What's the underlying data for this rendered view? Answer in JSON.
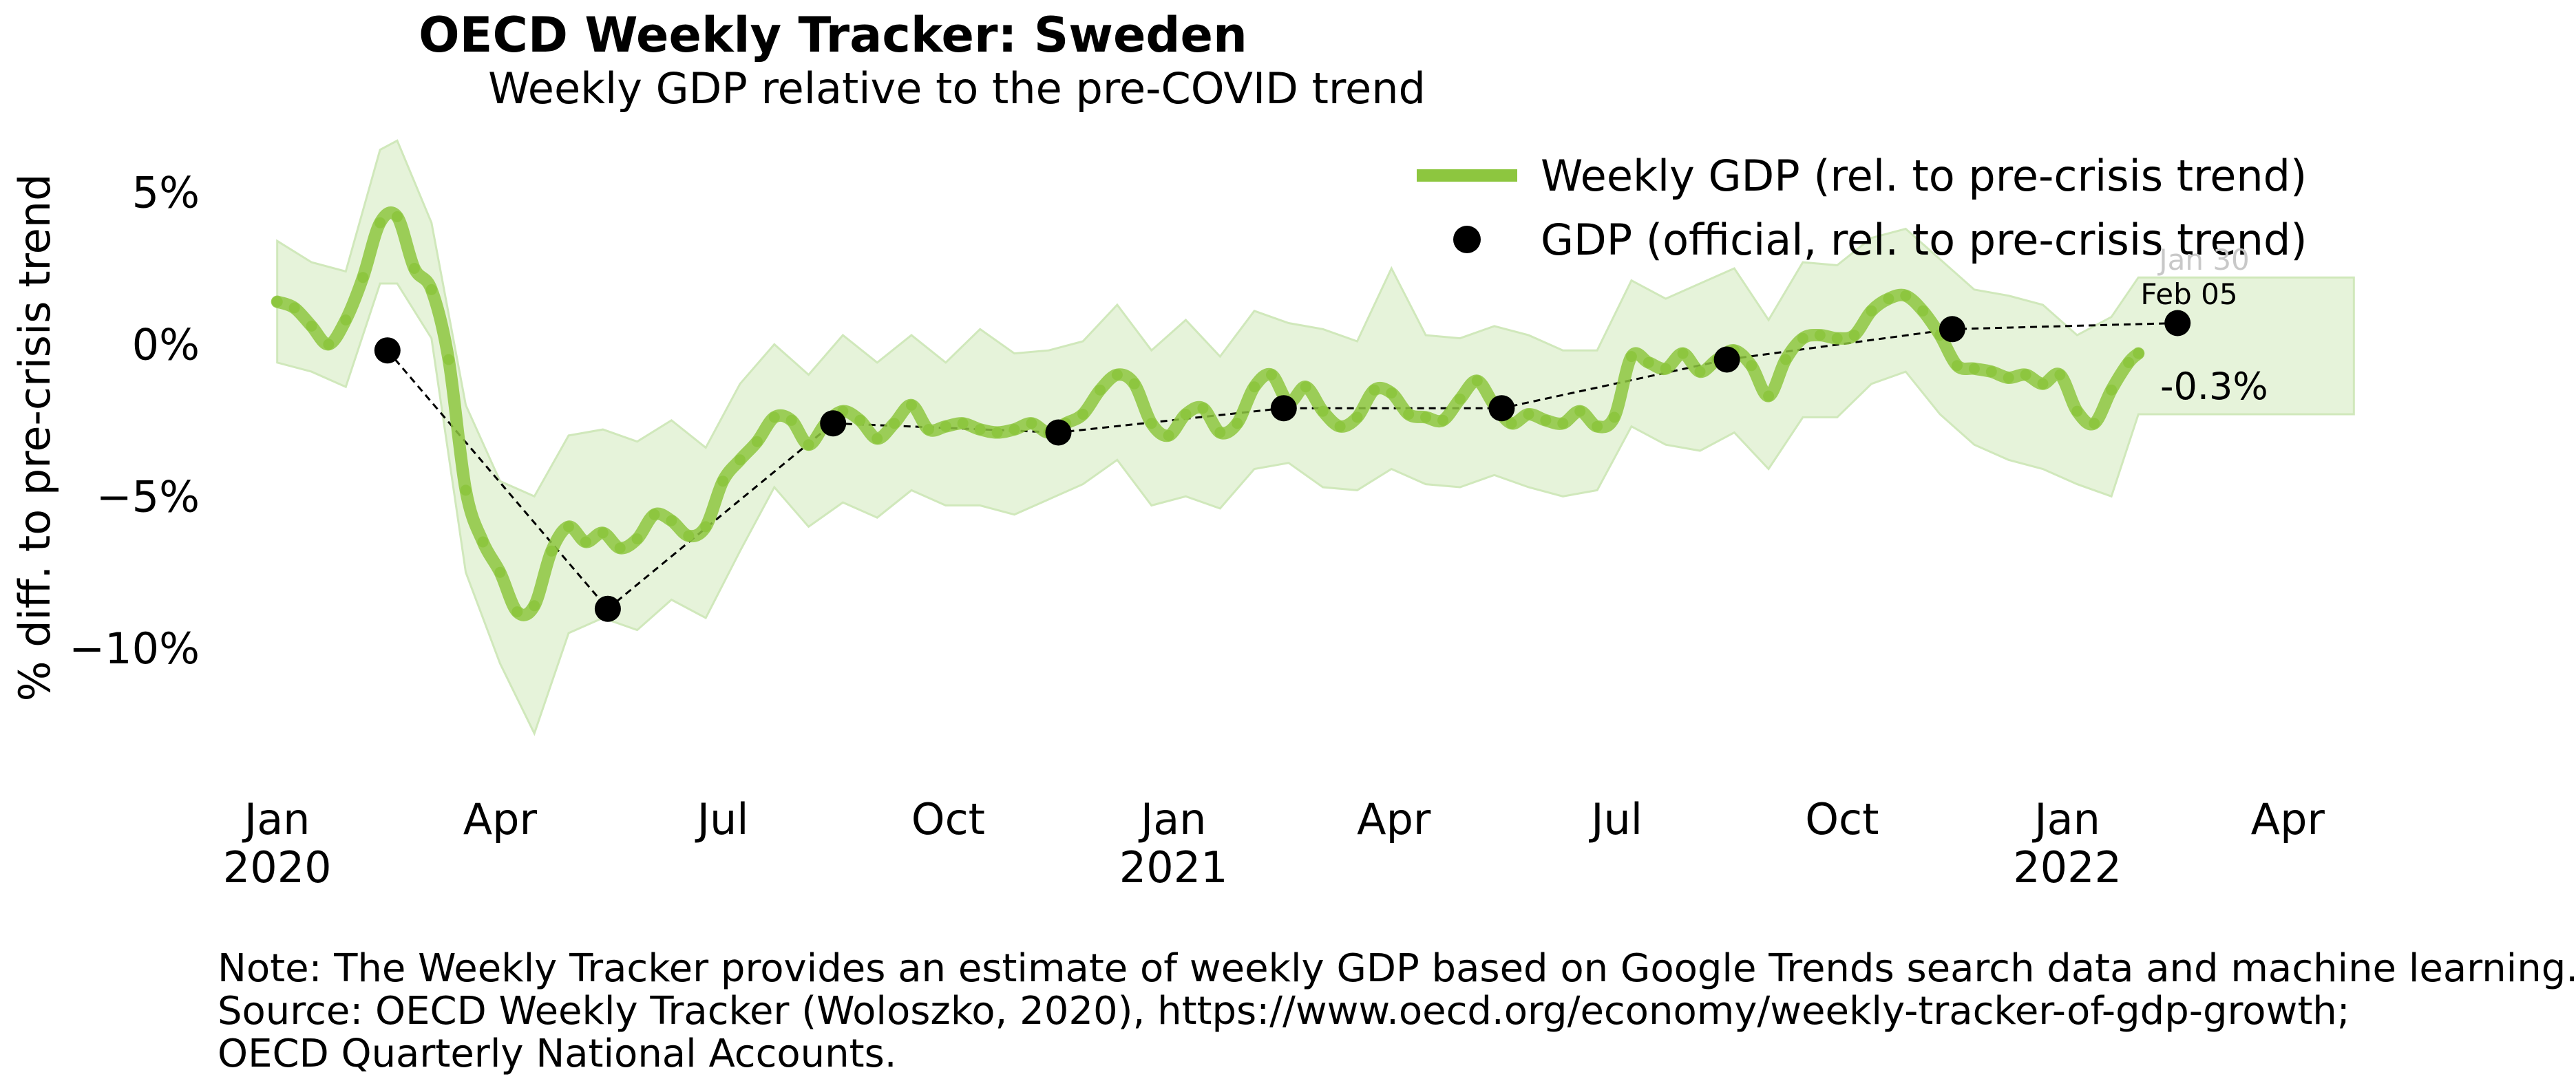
{
  "chart_data": {
    "type": "line",
    "title": "OECD Weekly Tracker: Sweden",
    "subtitle": "Weekly GDP relative to the pre-COVID trend",
    "ylabel": "% diff. to pre-crisis trend",
    "xlabel": "",
    "ylim": [
      -13.8,
      6.8
    ],
    "xlim": [
      "2019-12-20",
      "2022-05-01"
    ],
    "y_ticks": [
      {
        "value": 5,
        "label": "5%"
      },
      {
        "value": 0,
        "label": "0%"
      },
      {
        "value": -5,
        "label": "−5%"
      },
      {
        "value": -10,
        "label": "−10%"
      }
    ],
    "x_ticks": [
      {
        "date": "2020-01-01",
        "label": "Jan",
        "year": "2020"
      },
      {
        "date": "2020-04-01",
        "label": "Apr",
        "year": ""
      },
      {
        "date": "2020-07-01",
        "label": "Jul",
        "year": ""
      },
      {
        "date": "2020-10-01",
        "label": "Oct",
        "year": ""
      },
      {
        "date": "2021-01-01",
        "label": "Jan",
        "year": "2021"
      },
      {
        "date": "2021-04-01",
        "label": "Apr",
        "year": ""
      },
      {
        "date": "2021-07-01",
        "label": "Jul",
        "year": ""
      },
      {
        "date": "2021-10-01",
        "label": "Oct",
        "year": ""
      },
      {
        "date": "2022-01-01",
        "label": "Jan",
        "year": "2022"
      },
      {
        "date": "2022-04-01",
        "label": "Apr",
        "year": ""
      }
    ],
    "grid": false,
    "legend_position": "top-right",
    "colors": {
      "weekly": "#8dc63f",
      "band": "#e6f3da",
      "band_edge": "#d0e8bb",
      "official": "#000000"
    },
    "series": [
      {
        "name": "Weekly GDP (rel. to pre-crisis trend)",
        "kind": "line",
        "points": [
          [
            "2020-01-01",
            1.4
          ],
          [
            "2020-01-08",
            1.2
          ],
          [
            "2020-01-15",
            0.6
          ],
          [
            "2020-01-22",
            0.0
          ],
          [
            "2020-01-29",
            0.8
          ],
          [
            "2020-02-05",
            2.2
          ],
          [
            "2020-02-12",
            4.0
          ],
          [
            "2020-02-19",
            4.2
          ],
          [
            "2020-02-26",
            2.5
          ],
          [
            "2020-03-04",
            1.8
          ],
          [
            "2020-03-11",
            -0.5
          ],
          [
            "2020-03-18",
            -4.8
          ],
          [
            "2020-03-25",
            -6.5
          ],
          [
            "2020-04-01",
            -7.5
          ],
          [
            "2020-04-08",
            -8.8
          ],
          [
            "2020-04-15",
            -8.6
          ],
          [
            "2020-04-22",
            -6.8
          ],
          [
            "2020-04-29",
            -6.0
          ],
          [
            "2020-05-06",
            -6.5
          ],
          [
            "2020-05-13",
            -6.2
          ],
          [
            "2020-05-20",
            -6.7
          ],
          [
            "2020-05-27",
            -6.4
          ],
          [
            "2020-06-03",
            -5.6
          ],
          [
            "2020-06-10",
            -5.8
          ],
          [
            "2020-06-17",
            -6.3
          ],
          [
            "2020-06-24",
            -6.0
          ],
          [
            "2020-07-01",
            -4.5
          ],
          [
            "2020-07-08",
            -3.8
          ],
          [
            "2020-07-15",
            -3.2
          ],
          [
            "2020-07-22",
            -2.4
          ],
          [
            "2020-07-29",
            -2.5
          ],
          [
            "2020-08-05",
            -3.3
          ],
          [
            "2020-08-12",
            -2.6
          ],
          [
            "2020-08-19",
            -2.2
          ],
          [
            "2020-08-26",
            -2.5
          ],
          [
            "2020-09-02",
            -3.1
          ],
          [
            "2020-09-09",
            -2.6
          ],
          [
            "2020-09-16",
            -2.0
          ],
          [
            "2020-09-23",
            -2.8
          ],
          [
            "2020-09-30",
            -2.7
          ],
          [
            "2020-10-07",
            -2.6
          ],
          [
            "2020-10-14",
            -2.8
          ],
          [
            "2020-10-21",
            -2.9
          ],
          [
            "2020-10-28",
            -2.8
          ],
          [
            "2020-11-04",
            -2.6
          ],
          [
            "2020-11-11",
            -2.9
          ],
          [
            "2020-11-18",
            -2.6
          ],
          [
            "2020-11-25",
            -2.3
          ],
          [
            "2020-12-02",
            -1.5
          ],
          [
            "2020-12-09",
            -1.0
          ],
          [
            "2020-12-16",
            -1.3
          ],
          [
            "2020-12-23",
            -2.6
          ],
          [
            "2020-12-30",
            -3.0
          ],
          [
            "2021-01-06",
            -2.3
          ],
          [
            "2021-01-13",
            -2.1
          ],
          [
            "2021-01-20",
            -2.9
          ],
          [
            "2021-01-27",
            -2.6
          ],
          [
            "2021-02-03",
            -1.4
          ],
          [
            "2021-02-10",
            -1.0
          ],
          [
            "2021-02-17",
            -1.9
          ],
          [
            "2021-02-24",
            -1.4
          ],
          [
            "2021-03-03",
            -2.2
          ],
          [
            "2021-03-10",
            -2.7
          ],
          [
            "2021-03-17",
            -2.4
          ],
          [
            "2021-03-24",
            -1.5
          ],
          [
            "2021-03-31",
            -1.6
          ],
          [
            "2021-04-07",
            -2.3
          ],
          [
            "2021-04-14",
            -2.4
          ],
          [
            "2021-04-21",
            -2.5
          ],
          [
            "2021-04-28",
            -1.8
          ],
          [
            "2021-05-05",
            -1.2
          ],
          [
            "2021-05-12",
            -2.0
          ],
          [
            "2021-05-19",
            -2.6
          ],
          [
            "2021-05-26",
            -2.3
          ],
          [
            "2021-06-02",
            -2.5
          ],
          [
            "2021-06-09",
            -2.6
          ],
          [
            "2021-06-16",
            -2.2
          ],
          [
            "2021-06-23",
            -2.7
          ],
          [
            "2021-06-30",
            -2.4
          ],
          [
            "2021-07-07",
            -0.4
          ],
          [
            "2021-07-14",
            -0.6
          ],
          [
            "2021-07-21",
            -0.8
          ],
          [
            "2021-07-28",
            -0.3
          ],
          [
            "2021-08-04",
            -0.9
          ],
          [
            "2021-08-11",
            -0.5
          ],
          [
            "2021-08-18",
            -0.2
          ],
          [
            "2021-08-25",
            -0.7
          ],
          [
            "2021-09-01",
            -1.7
          ],
          [
            "2021-09-08",
            -0.5
          ],
          [
            "2021-09-15",
            0.2
          ],
          [
            "2021-09-22",
            0.3
          ],
          [
            "2021-09-29",
            0.2
          ],
          [
            "2021-10-06",
            0.3
          ],
          [
            "2021-10-13",
            1.1
          ],
          [
            "2021-10-20",
            1.5
          ],
          [
            "2021-10-27",
            1.6
          ],
          [
            "2021-11-03",
            1.1
          ],
          [
            "2021-11-10",
            0.3
          ],
          [
            "2021-11-17",
            -0.7
          ],
          [
            "2021-11-24",
            -0.8
          ],
          [
            "2021-12-01",
            -0.9
          ],
          [
            "2021-12-08",
            -1.1
          ],
          [
            "2021-12-15",
            -1.0
          ],
          [
            "2021-12-22",
            -1.3
          ],
          [
            "2021-12-29",
            -1.0
          ],
          [
            "2022-01-05",
            -2.2
          ],
          [
            "2022-01-12",
            -2.6
          ],
          [
            "2022-01-19",
            -1.5
          ],
          [
            "2022-01-26",
            -0.6
          ],
          [
            "2022-01-30",
            -0.3
          ]
        ]
      },
      {
        "name": "",
        "kind": "band",
        "points": [
          [
            "2020-01-01",
            -0.6,
            3.4
          ],
          [
            "2020-01-15",
            -0.9,
            2.7
          ],
          [
            "2020-01-29",
            -1.4,
            2.4
          ],
          [
            "2020-02-12",
            2.0,
            6.4
          ],
          [
            "2020-02-19",
            2.0,
            6.7
          ],
          [
            "2020-03-04",
            0.2,
            4.0
          ],
          [
            "2020-03-18",
            -7.5,
            -2.0
          ],
          [
            "2020-04-01",
            -10.5,
            -4.5
          ],
          [
            "2020-04-15",
            -12.8,
            -5.0
          ],
          [
            "2020-04-29",
            -9.5,
            -3.0
          ],
          [
            "2020-05-13",
            -9.0,
            -2.8
          ],
          [
            "2020-05-27",
            -9.4,
            -3.2
          ],
          [
            "2020-06-10",
            -8.4,
            -2.5
          ],
          [
            "2020-06-24",
            -9.0,
            -3.4
          ],
          [
            "2020-07-08",
            -6.8,
            -1.3
          ],
          [
            "2020-07-22",
            -4.7,
            0.0
          ],
          [
            "2020-08-05",
            -6.0,
            -1.0
          ],
          [
            "2020-08-19",
            -5.2,
            0.3
          ],
          [
            "2020-09-02",
            -5.7,
            -0.6
          ],
          [
            "2020-09-16",
            -4.8,
            0.3
          ],
          [
            "2020-09-30",
            -5.3,
            -0.6
          ],
          [
            "2020-10-14",
            -5.3,
            0.5
          ],
          [
            "2020-10-28",
            -5.6,
            -0.3
          ],
          [
            "2020-11-11",
            -5.1,
            -0.2
          ],
          [
            "2020-11-25",
            -4.6,
            0.1
          ],
          [
            "2020-12-09",
            -3.8,
            1.3
          ],
          [
            "2020-12-23",
            -5.3,
            -0.2
          ],
          [
            "2021-01-06",
            -5.0,
            0.8
          ],
          [
            "2021-01-20",
            -5.4,
            -0.4
          ],
          [
            "2021-02-03",
            -4.1,
            1.1
          ],
          [
            "2021-02-17",
            -3.9,
            0.7
          ],
          [
            "2021-03-03",
            -4.7,
            0.5
          ],
          [
            "2021-03-17",
            -4.8,
            0.1
          ],
          [
            "2021-03-31",
            -4.1,
            2.5
          ],
          [
            "2021-04-14",
            -4.6,
            0.3
          ],
          [
            "2021-04-28",
            -4.7,
            0.2
          ],
          [
            "2021-05-12",
            -4.3,
            0.6
          ],
          [
            "2021-05-26",
            -4.7,
            0.3
          ],
          [
            "2021-06-09",
            -5.0,
            -0.2
          ],
          [
            "2021-06-23",
            -4.8,
            -0.2
          ],
          [
            "2021-07-07",
            -2.7,
            2.1
          ],
          [
            "2021-07-21",
            -3.3,
            1.5
          ],
          [
            "2021-08-04",
            -3.5,
            2.0
          ],
          [
            "2021-08-18",
            -2.9,
            2.5
          ],
          [
            "2021-09-01",
            -4.1,
            0.8
          ],
          [
            "2021-09-15",
            -2.4,
            2.7
          ],
          [
            "2021-09-29",
            -2.4,
            2.6
          ],
          [
            "2021-10-13",
            -1.3,
            3.5
          ],
          [
            "2021-10-27",
            -0.9,
            3.8
          ],
          [
            "2021-11-10",
            -2.3,
            2.8
          ],
          [
            "2021-11-24",
            -3.3,
            1.8
          ],
          [
            "2021-12-08",
            -3.8,
            1.6
          ],
          [
            "2021-12-22",
            -4.1,
            1.3
          ],
          [
            "2022-01-05",
            -4.6,
            0.3
          ],
          [
            "2022-01-19",
            -5.0,
            0.9
          ],
          [
            "2022-01-30",
            -2.3,
            2.2
          ],
          [
            "2022-04-28",
            -2.3,
            2.2
          ]
        ]
      },
      {
        "name": "GDP (official, rel. to pre-crisis trend)",
        "kind": "points",
        "points": [
          [
            "2020-02-15",
            -0.2
          ],
          [
            "2020-05-15",
            -8.7
          ],
          [
            "2020-08-15",
            -2.6
          ],
          [
            "2020-11-15",
            -2.9
          ],
          [
            "2021-02-15",
            -2.1
          ],
          [
            "2021-05-15",
            -2.1
          ],
          [
            "2021-08-15",
            -0.5
          ],
          [
            "2021-11-15",
            0.5
          ],
          [
            "2022-02-15",
            0.7
          ]
        ]
      }
    ],
    "annotations": {
      "weekly_last_date": "Jan 30",
      "official_last_date": "Feb 05",
      "weekly_last_value": "-0.3%"
    },
    "note_lines": [
      "Note: The Weekly Tracker provides an estimate of weekly GDP based on Google Trends search data and machine learning.",
      "Source: OECD Weekly Tracker (Woloszko, 2020), https://www.oecd.org/economy/weekly-tracker-of-gdp-growth;",
      "OECD Quarterly National Accounts."
    ]
  }
}
